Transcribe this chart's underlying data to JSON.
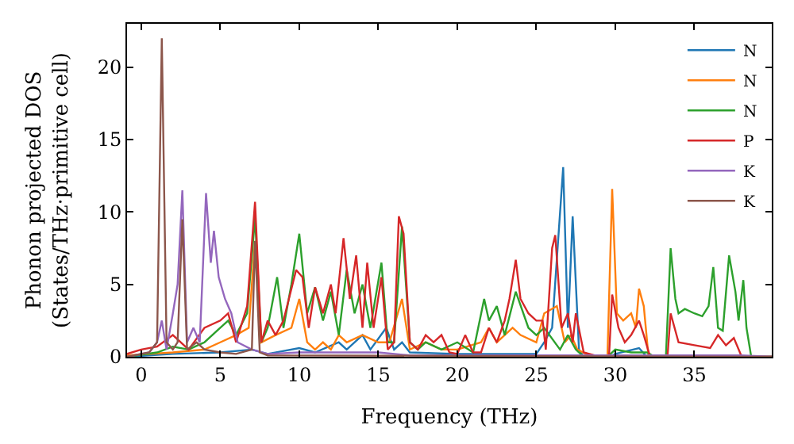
{
  "chart_data": {
    "type": "line",
    "xlabel": "Frequency (THz)",
    "ylabel": "Phonon projected DOS\n(States/THz·primitive cell)",
    "xlim": [
      -0.9,
      39.9
    ],
    "ylim": [
      0,
      23
    ],
    "xticks": [
      0,
      5,
      10,
      15,
      20,
      25,
      30,
      35
    ],
    "yticks": [
      0,
      5,
      10,
      15,
      20
    ],
    "legend": "top right",
    "marker": "none",
    "line_style": "solid",
    "series": [
      {
        "name": "N",
        "color": "#1f77b4",
        "x": [
          -0.9,
          2,
          5,
          7,
          8,
          10,
          11,
          12.5,
          13,
          14,
          14.5,
          15.5,
          16,
          16.5,
          17,
          20,
          25,
          25.5,
          26,
          26.7,
          27,
          27.3,
          27.7,
          28,
          29.6,
          30,
          31.5,
          32,
          39.9
        ],
        "values": [
          0,
          0.2,
          0.3,
          0.5,
          0.2,
          0.6,
          0.3,
          1,
          0.5,
          1.5,
          0.5,
          2,
          0.5,
          1,
          0.3,
          0.2,
          0.2,
          1,
          2,
          13.1,
          2,
          9.7,
          0.5,
          0,
          0,
          0.2,
          0.6,
          0,
          0
        ]
      },
      {
        "name": "N",
        "color": "#ff7f0e",
        "x": [
          -0.9,
          2,
          4,
          5,
          6,
          6.8,
          7.2,
          7.6,
          8.5,
          9.5,
          10,
          10.5,
          11,
          11.5,
          12,
          12.5,
          13,
          14,
          15,
          15.7,
          16.5,
          17,
          18,
          19,
          20,
          21.5,
          22,
          22.5,
          23,
          23.5,
          24,
          25,
          25.5,
          26.3,
          26.8,
          27.2,
          27.6,
          28.5,
          29.5,
          29.8,
          30.1,
          30.5,
          31,
          31.3,
          31.5,
          31.8,
          32.1,
          39.9
        ],
        "values": [
          0.1,
          0.3,
          0.5,
          1,
          1.5,
          2,
          8,
          1,
          1.5,
          2,
          4,
          1,
          0.5,
          1,
          0.5,
          1.5,
          1,
          1.5,
          1,
          1,
          4,
          0.5,
          1,
          0.5,
          0.5,
          1,
          2,
          1,
          1.5,
          2,
          1.5,
          1,
          3,
          3.5,
          1,
          1.5,
          0.5,
          0,
          0,
          11.6,
          3,
          2.5,
          3,
          2,
          4.7,
          3.5,
          0,
          0
        ]
      },
      {
        "name": "N",
        "color": "#2ca02c",
        "x": [
          -0.9,
          1,
          2,
          3,
          4,
          5,
          5.5,
          6,
          6.7,
          7.2,
          7.6,
          8,
          8.6,
          9,
          9.5,
          10,
          10.5,
          11,
          11.5,
          12,
          12.5,
          13,
          13.5,
          14,
          14.5,
          15.2,
          15.6,
          16,
          16.5,
          17,
          17.5,
          18,
          19,
          20,
          21,
          21.7,
          22,
          22.5,
          23,
          23.7,
          24.5,
          25,
          25.5,
          26.5,
          27,
          27.5,
          28,
          29.5,
          30,
          31,
          32,
          32.5,
          33.2,
          33.5,
          33.8,
          34,
          34.4,
          35,
          35.5,
          35.9,
          36.2,
          36.5,
          36.8,
          37.2,
          37.6,
          37.8,
          38.1,
          38.3,
          38.6,
          39.9
        ],
        "values": [
          0,
          0.3,
          0.7,
          0.5,
          1,
          2,
          2.5,
          1.5,
          3,
          9.6,
          1,
          2,
          5.5,
          2,
          5,
          8.5,
          3,
          4.8,
          2.5,
          4.5,
          1.5,
          6,
          3,
          5,
          2,
          6.5,
          1,
          1,
          9,
          1,
          0.5,
          1,
          0.5,
          1,
          0.3,
          4,
          2.5,
          3.5,
          1.5,
          4.5,
          2,
          1.5,
          2,
          0.5,
          1.5,
          0.5,
          0,
          0,
          0.5,
          0.3,
          0.3,
          0,
          0,
          7.5,
          4,
          3,
          3.3,
          3,
          2.8,
          3.5,
          6.2,
          2,
          1.8,
          7,
          4.5,
          2.5,
          5.3,
          2,
          0,
          0
        ]
      },
      {
        "name": "P",
        "color": "#d62728",
        "x": [
          -0.9,
          0,
          1,
          2,
          3,
          4,
          5,
          5.5,
          6,
          6.7,
          7.2,
          7.6,
          8,
          8.5,
          9,
          9.8,
          10.2,
          10.6,
          11,
          11.5,
          12,
          12.3,
          12.8,
          13.2,
          13.6,
          14,
          14.3,
          14.7,
          15.2,
          15.6,
          16,
          16.3,
          16.6,
          17,
          17.5,
          18,
          18.5,
          19,
          19.5,
          20,
          20.5,
          21,
          21.5,
          22,
          22.5,
          23,
          23.3,
          23.7,
          24,
          24.5,
          25,
          25.4,
          25.6,
          26,
          26.2,
          26.6,
          27,
          27.3,
          27.5,
          28,
          29,
          29.6,
          29.8,
          30.2,
          30.6,
          31,
          31.5,
          31.8,
          32.2,
          33.3,
          33.5,
          34,
          35,
          36,
          36.5,
          37,
          37.5,
          38,
          39.9
        ],
        "values": [
          0.2,
          0.5,
          0.7,
          1.5,
          0.5,
          2,
          2.5,
          3,
          1,
          3.5,
          10.7,
          1,
          2.5,
          1.5,
          2.5,
          6,
          5.5,
          2,
          4.8,
          3,
          5,
          3,
          8.2,
          4,
          7,
          2,
          6.5,
          2,
          5.5,
          0.5,
          1,
          9.7,
          8.5,
          1,
          0.5,
          1.5,
          1,
          1.5,
          0.3,
          0.2,
          1.5,
          0.3,
          0.3,
          2,
          1,
          2.5,
          4,
          6.7,
          4,
          3,
          2.5,
          2.5,
          0.5,
          7.5,
          8.4,
          2,
          3,
          1,
          3,
          0.3,
          0,
          0,
          4.3,
          2,
          1,
          1.5,
          2.5,
          1.5,
          0,
          0,
          3,
          1,
          0.8,
          0.6,
          1.5,
          0.8,
          1.3,
          0,
          0
        ]
      },
      {
        "name": "K",
        "color": "#9467bd",
        "x": [
          -0.9,
          0.5,
          1,
          1.3,
          1.6,
          2,
          2.3,
          2.6,
          2.9,
          3.3,
          3.7,
          4.1,
          4.4,
          4.6,
          4.9,
          5.3,
          5.7,
          6.1,
          7,
          8,
          10,
          15,
          17,
          38,
          39.9
        ],
        "values": [
          0,
          0.3,
          1,
          2.5,
          0.5,
          3,
          5,
          11.5,
          1,
          2,
          1,
          11.3,
          6.5,
          8.7,
          5.5,
          4,
          3,
          1,
          0.5,
          0.2,
          0.3,
          0.3,
          0.1,
          0.1,
          0
        ]
      },
      {
        "name": "K",
        "color": "#8c564b",
        "x": [
          -0.9,
          0.5,
          1,
          1.3,
          1.6,
          2,
          2.3,
          2.6,
          2.9,
          3.5,
          4,
          5,
          6,
          7,
          7.2,
          7.5,
          8,
          39.9
        ],
        "values": [
          0,
          0.3,
          1,
          22,
          1,
          0.5,
          1,
          9.5,
          0.5,
          1,
          0.5,
          0.3,
          0.2,
          0.5,
          8,
          0.3,
          0.1,
          0
        ]
      }
    ]
  }
}
